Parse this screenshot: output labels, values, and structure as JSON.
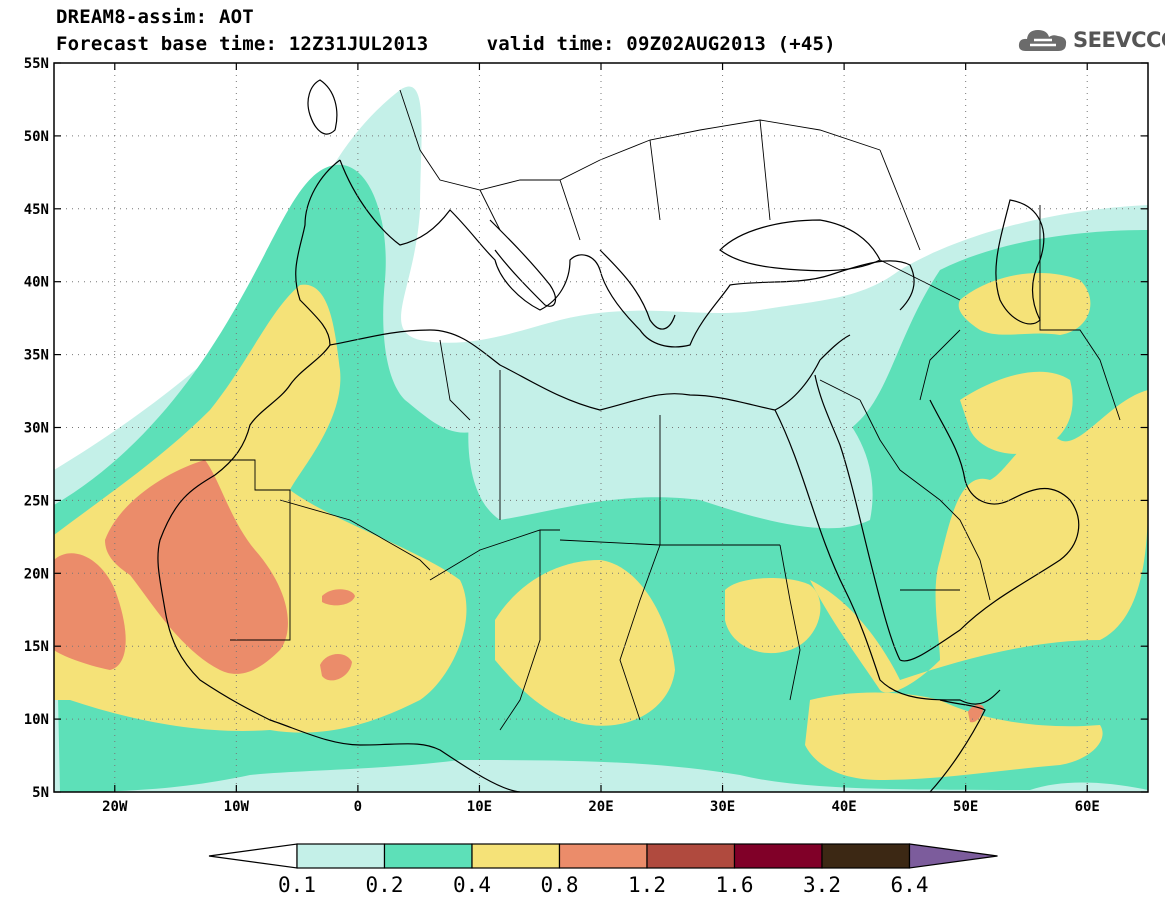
{
  "header": {
    "title_line1": "DREAM8-assim: AOT",
    "title_line2": "Forecast base time: 12Z31JUL2013     valid time: 09Z02AUG2013 (+45)"
  },
  "logo": {
    "text": "SEEVCCC",
    "icon": "cloud-icon"
  },
  "map": {
    "lon_range": [
      -25,
      65
    ],
    "lat_range": [
      5,
      55
    ],
    "lat_ticks": [
      "55N",
      "50N",
      "45N",
      "40N",
      "35N",
      "30N",
      "25N",
      "20N",
      "15N",
      "10N",
      "5N"
    ],
    "lon_ticks": [
      "20W",
      "10W",
      "0",
      "10E",
      "20E",
      "30E",
      "40E",
      "50E",
      "60E"
    ]
  },
  "colorbar": {
    "colors": [
      "#ffffff",
      "#c4f0e8",
      "#5de0b8",
      "#f5e278",
      "#eb8c6a",
      "#b04a3e",
      "#800028",
      "#3c2814",
      "#7c5c9c"
    ],
    "labels": [
      "0.1",
      "0.2",
      "0.4",
      "0.8",
      "1.2",
      "1.6",
      "3.2",
      "6.4"
    ]
  },
  "legend_colors": {
    "c1": "#c4f0e8",
    "c2": "#5de0b8",
    "c3": "#f5e278",
    "c4": "#eb8c6a"
  }
}
